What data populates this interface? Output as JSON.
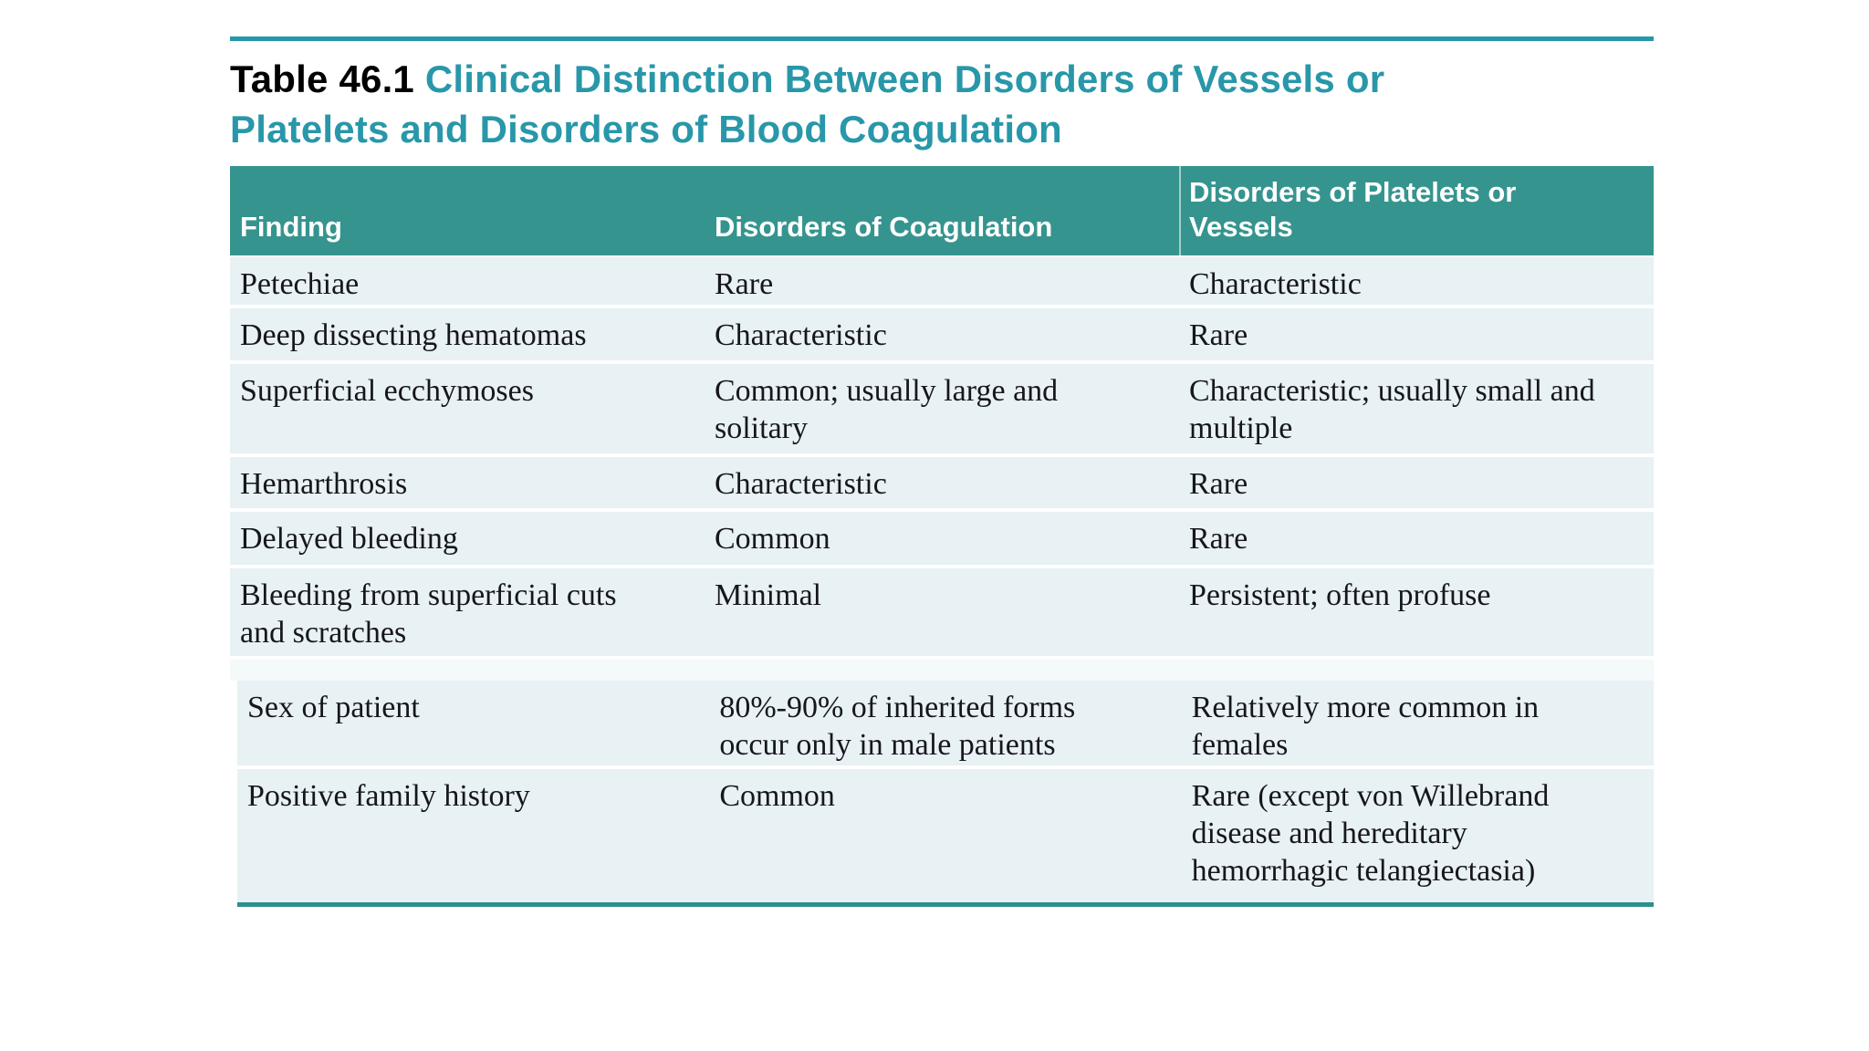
{
  "title": {
    "prefix": "Table 46.1",
    "line1": "Clinical Distinction Between Disorders of Vessels or",
    "line2": "Platelets and Disorders of Blood Coagulation"
  },
  "table": {
    "columns": {
      "finding": "Finding",
      "coagulation": "Disorders of Coagulation",
      "platelets": "Disorders of Platelets or\nVessels"
    },
    "rows": [
      {
        "finding": "Petechiae",
        "coagulation": "Rare",
        "platelets": "Characteristic"
      },
      {
        "finding": "Deep dissecting hematomas",
        "coagulation": "Characteristic",
        "platelets": "Rare"
      },
      {
        "finding": "Superficial ecchymoses",
        "coagulation": "Common; usually large and\nsolitary",
        "platelets": "Characteristic; usually small and\nmultiple"
      },
      {
        "finding": "Hemarthrosis",
        "coagulation": "Characteristic",
        "platelets": "Rare"
      },
      {
        "finding": "Delayed bleeding",
        "coagulation": "Common",
        "platelets": "Rare"
      },
      {
        "finding": "Bleeding from superficial cuts\nand scratches",
        "coagulation": "Minimal",
        "platelets": "Persistent; often profuse"
      },
      {
        "finding": "Sex of patient",
        "coagulation": "80%-90% of inherited forms\noccur only in male patients",
        "platelets": "Relatively more common in\nfemales"
      },
      {
        "finding": "Positive family history",
        "coagulation": "Common",
        "platelets": "Rare (except von Willebrand\ndisease and hereditary\nhemorrhagic telangiectasia)"
      }
    ]
  },
  "colors": {
    "teal_accent": "#2897a9",
    "title_prefix": "#000000",
    "header_bg": "#36948f",
    "header_text": "#ffffff",
    "row_bg": "#e8f1f4",
    "gap_bg": "#f4f9fa",
    "separator": "#2e8e8c",
    "body_text": "#16161f",
    "page_bg": "#ffffff"
  }
}
